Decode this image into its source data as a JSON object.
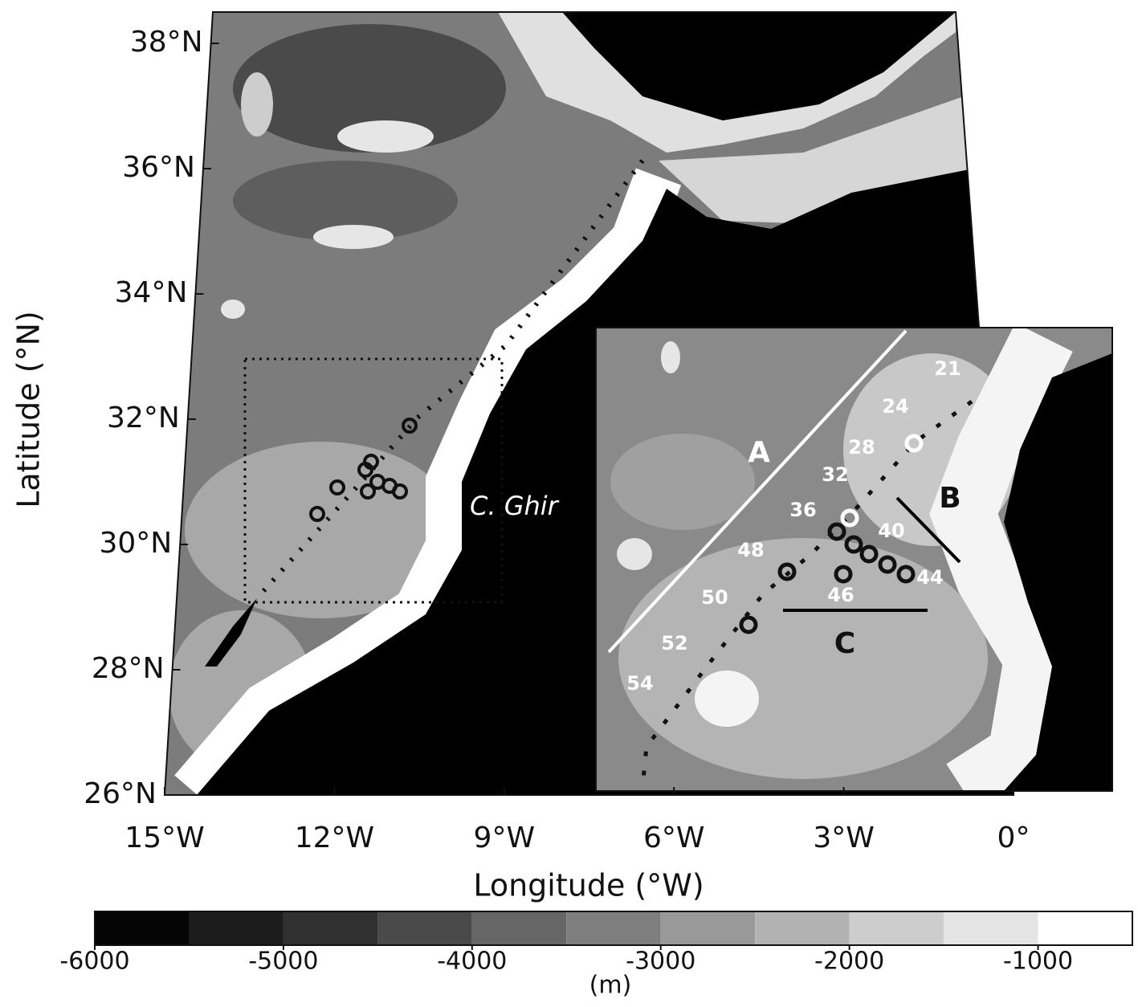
{
  "map": {
    "xlim": [
      -15,
      0
    ],
    "ylim": [
      26,
      38.5
    ],
    "xticks": [
      {
        "value": -15,
        "label": "15°W"
      },
      {
        "value": -12,
        "label": "12°W"
      },
      {
        "value": -9,
        "label": "9°W"
      },
      {
        "value": -6,
        "label": "6°W"
      },
      {
        "value": -3,
        "label": "3°W"
      },
      {
        "value": 0,
        "label": "0°"
      }
    ],
    "yticks": [
      {
        "value": 26,
        "label": "26°N"
      },
      {
        "value": 28,
        "label": "28°N"
      },
      {
        "value": 30,
        "label": "30°N"
      },
      {
        "value": 32,
        "label": "32°N"
      },
      {
        "value": 34,
        "label": "34°N"
      },
      {
        "value": 36,
        "label": "36°N"
      },
      {
        "value": 38,
        "label": "38°N"
      }
    ],
    "xlabel": "Longitude (°W)",
    "ylabel": "Latitude (°N)",
    "annotation": "C. Ghir"
  },
  "inset": {
    "sections": [
      "A",
      "B",
      "C"
    ],
    "stations": [
      "21",
      "24",
      "28",
      "32",
      "36",
      "40",
      "44",
      "46",
      "48",
      "50",
      "52",
      "54"
    ]
  },
  "colorbar": {
    "bins": [
      -6000,
      -5500,
      -5000,
      -4500,
      -4000,
      -3500,
      -3000,
      -2500,
      -2000,
      -1500,
      -1000,
      -500
    ],
    "colors": [
      "#050505",
      "#1c1c1c",
      "#303030",
      "#4a4a4a",
      "#666666",
      "#7e7e7e",
      "#999999",
      "#b2b2b2",
      "#cdcdcd",
      "#e4e4e4",
      "#ffffff"
    ],
    "ticks": [
      -6000,
      -5000,
      -4000,
      -3000,
      -2000,
      -1000
    ],
    "label": "(m)"
  }
}
